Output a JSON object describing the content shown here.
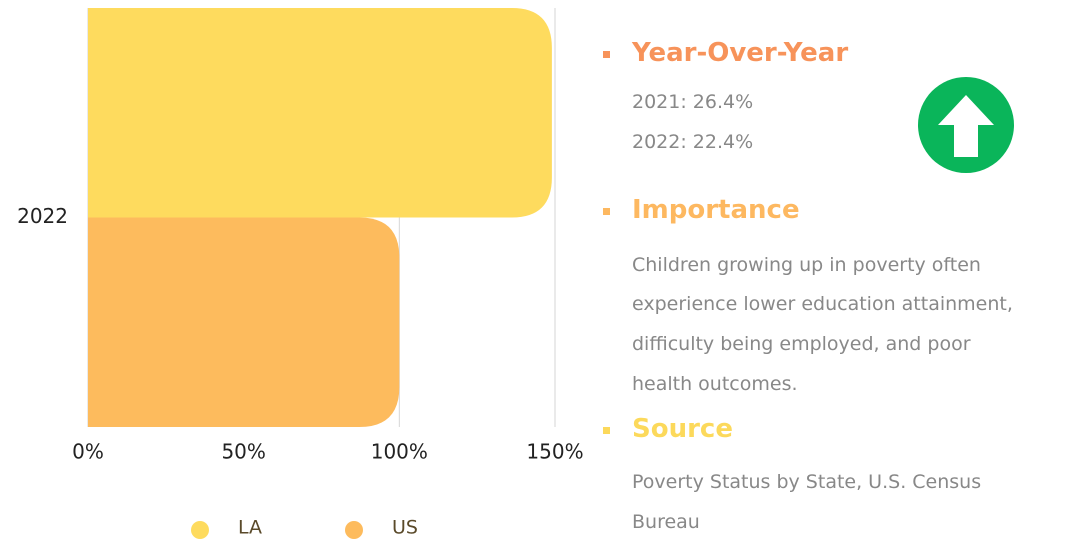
{
  "chart_data": {
    "type": "bar",
    "orientation": "horizontal",
    "categories": [
      "2022"
    ],
    "series": [
      {
        "name": "LA",
        "color": "#fedb5e",
        "values": [
          149
        ]
      },
      {
        "name": "US",
        "color": "#fdbb5d",
        "values": [
          100
        ]
      }
    ],
    "xlim": [
      0,
      150
    ],
    "xticks": [
      {
        "value": 0,
        "label": "0%"
      },
      {
        "value": 50,
        "label": "50%"
      },
      {
        "value": 100,
        "label": "100%"
      },
      {
        "value": 150,
        "label": "150%"
      }
    ],
    "grid": true,
    "legend": "bottom"
  },
  "sections": [
    {
      "title": "Year-Over-Year",
      "color": "#f7935a",
      "lines": [
        "2021: 26.4%",
        "2022: 22.4%"
      ]
    },
    {
      "title": "Importance",
      "color": "#fdb860",
      "lines": [
        "Children growing up in poverty often",
        "experience lower education attainment,",
        "difficulty being employed, and poor",
        "health outcomes."
      ]
    },
    {
      "title": "Source",
      "color": "#fcd95b",
      "lines": [
        "Poverty Status by State, U.S. Census",
        "Bureau"
      ]
    }
  ]
}
